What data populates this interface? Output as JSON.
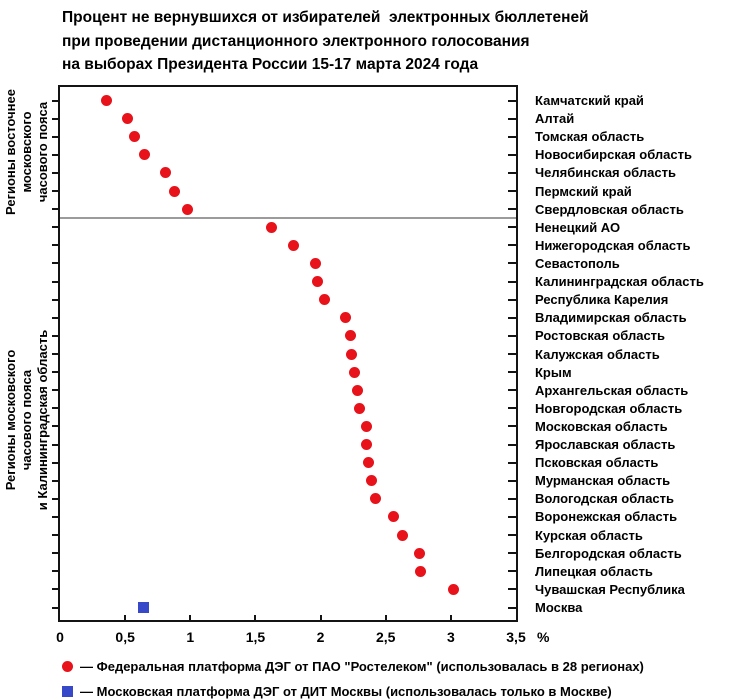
{
  "title": {
    "line1": "Процент не вернувшихся от избирателей  электронных бюллетеней",
    "line2": "при проведении дистанционного электронного голосования",
    "line3": "на выборах Президента России 15-17 марта 2024 года"
  },
  "chart_data": {
    "type": "scatter",
    "subtype": "horizontal-dot-plot",
    "xlabel": "%",
    "xlim": [
      0,
      3.5
    ],
    "x_tick_labels": [
      "0",
      "0,5",
      "1",
      "1,5",
      "2",
      "2,5",
      "3",
      "3,5"
    ],
    "x_tick_values": [
      0,
      0.5,
      1,
      1.5,
      2,
      2.5,
      3,
      3.5
    ],
    "grid": false,
    "group_axis_labels": {
      "top": [
        "Регионы восточнее",
        "московского",
        "часового пояса"
      ],
      "bottom": [
        "Регионы московского",
        "часового пояса",
        "и Калининградская область"
      ]
    },
    "groups": {
      "east_rows": 7,
      "moscow_tz_rows": 22
    },
    "series": [
      {
        "id": "federal",
        "marker": "circle",
        "color": "#e8121a"
      },
      {
        "id": "moscow",
        "marker": "square",
        "color": "#3749c9"
      }
    ],
    "points": [
      {
        "region": "Камчатский край",
        "value": 0.36,
        "series": "federal",
        "group": "east"
      },
      {
        "region": "Алтай",
        "value": 0.52,
        "series": "federal",
        "group": "east"
      },
      {
        "region": "Томская область",
        "value": 0.57,
        "series": "federal",
        "group": "east"
      },
      {
        "region": "Новосибирская область",
        "value": 0.65,
        "series": "federal",
        "group": "east"
      },
      {
        "region": "Челябинская область",
        "value": 0.81,
        "series": "federal",
        "group": "east"
      },
      {
        "region": "Пермский край",
        "value": 0.88,
        "series": "federal",
        "group": "east"
      },
      {
        "region": "Свердловская область",
        "value": 0.98,
        "series": "federal",
        "group": "east"
      },
      {
        "region": "Ненецкий АО",
        "value": 1.62,
        "series": "federal",
        "group": "moscow_tz"
      },
      {
        "region": "Нижегородская область",
        "value": 1.79,
        "series": "federal",
        "group": "moscow_tz"
      },
      {
        "region": "Севастополь",
        "value": 1.96,
        "series": "federal",
        "group": "moscow_tz"
      },
      {
        "region": "Калининградская область",
        "value": 1.98,
        "series": "federal",
        "group": "moscow_tz"
      },
      {
        "region": "Республика Карелия",
        "value": 2.03,
        "series": "federal",
        "group": "moscow_tz"
      },
      {
        "region": "Владимирская область",
        "value": 2.19,
        "series": "federal",
        "group": "moscow_tz"
      },
      {
        "region": "Ростовская область",
        "value": 2.23,
        "series": "federal",
        "group": "moscow_tz"
      },
      {
        "region": "Калужская область",
        "value": 2.24,
        "series": "federal",
        "group": "moscow_tz"
      },
      {
        "region": "Крым",
        "value": 2.26,
        "series": "federal",
        "group": "moscow_tz"
      },
      {
        "region": "Архангельская область",
        "value": 2.28,
        "series": "federal",
        "group": "moscow_tz"
      },
      {
        "region": "Новгородская область",
        "value": 2.3,
        "series": "federal",
        "group": "moscow_tz"
      },
      {
        "region": "Московская область",
        "value": 2.35,
        "series": "federal",
        "group": "moscow_tz"
      },
      {
        "region": "Ярославская область",
        "value": 2.35,
        "series": "federal",
        "group": "moscow_tz"
      },
      {
        "region": "Псковская область",
        "value": 2.37,
        "series": "federal",
        "group": "moscow_tz"
      },
      {
        "region": "Мурманская область",
        "value": 2.39,
        "series": "federal",
        "group": "moscow_tz"
      },
      {
        "region": "Вологодская область",
        "value": 2.42,
        "series": "federal",
        "group": "moscow_tz"
      },
      {
        "region": "Воронежская область",
        "value": 2.56,
        "series": "federal",
        "group": "moscow_tz"
      },
      {
        "region": "Курская область",
        "value": 2.63,
        "series": "federal",
        "group": "moscow_tz"
      },
      {
        "region": "Белгородская область",
        "value": 2.76,
        "series": "federal",
        "group": "moscow_tz"
      },
      {
        "region": "Липецкая область",
        "value": 2.77,
        "series": "federal",
        "group": "moscow_tz"
      },
      {
        "region": "Чувашская Республика",
        "value": 3.02,
        "series": "federal",
        "group": "moscow_tz"
      },
      {
        "region": "Москва",
        "value": 0.64,
        "series": "moscow",
        "group": "moscow_tz"
      }
    ]
  },
  "legend": [
    {
      "marker": "circle",
      "color": "#e8121a",
      "text": "— Федеральная платформа ДЭГ от ПАО \"Ростелеком\" (использовалась в 28 регионах)"
    },
    {
      "marker": "square",
      "color": "#3749c9",
      "text": "— Московская платформа ДЭГ от ДИТ Москвы (использовалась только в Москве)"
    }
  ]
}
